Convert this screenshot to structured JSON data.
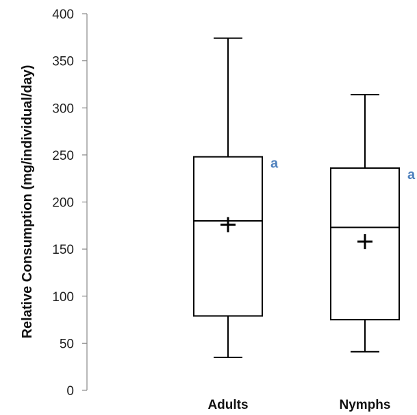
{
  "chart_data": {
    "type": "boxplot",
    "ylabel": "Relative Consumption (mg/individual/day)",
    "ylim": [
      0,
      400
    ],
    "yticks": [
      0,
      50,
      100,
      150,
      200,
      250,
      300,
      350,
      400
    ],
    "grid": false,
    "series": [
      {
        "category": "Adults",
        "min": 35,
        "q1": 79,
        "median": 180,
        "q3": 248,
        "max": 374,
        "mean": 176,
        "letter": "a"
      },
      {
        "category": "Nymphs",
        "min": 41,
        "q1": 75,
        "median": 173,
        "q3": 236,
        "max": 314,
        "mean": 158,
        "letter": "a"
      }
    ],
    "letter_color": "#4F81BD"
  }
}
